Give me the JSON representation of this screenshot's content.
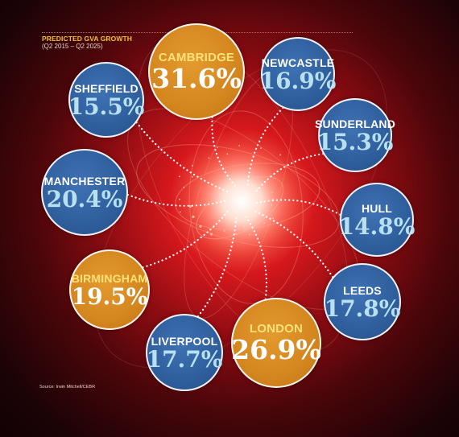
{
  "header": {
    "title": "PREDICTED GVA GROWTH",
    "subtitle": "(Q2 2015 – Q2 2025)"
  },
  "source": "Source: Irwin Mitchell/CEBR",
  "colors": {
    "blue_bubble": "#2f5e9c",
    "orange_bubble": "#d4861f",
    "title": "#f2c21d"
  },
  "chart_data": {
    "type": "bubble-infographic",
    "title": "PREDICTED GVA GROWTH",
    "subtitle": "(Q2 2015 – Q2 2025)",
    "unit": "%",
    "categories": [
      "Cambridge",
      "Newcastle",
      "Sunderland",
      "Hull",
      "Leeds",
      "London",
      "Liverpool",
      "Birmingham",
      "Manchester",
      "Sheffield"
    ],
    "values": [
      31.6,
      16.9,
      15.3,
      14.8,
      17.8,
      26.9,
      17.7,
      19.5,
      20.4,
      15.5
    ],
    "items": [
      {
        "name": "CAMBRIDGE",
        "label": "31.6%",
        "value": 31.6,
        "color": "orange"
      },
      {
        "name": "NEWCASTLE",
        "label": "16.9%",
        "value": 16.9,
        "color": "blue"
      },
      {
        "name": "SUNDERLAND",
        "label": "15.3%",
        "value": 15.3,
        "color": "blue"
      },
      {
        "name": "HULL",
        "label": "14.8%",
        "value": 14.8,
        "color": "blue"
      },
      {
        "name": "LEEDS",
        "label": "17.8%",
        "value": 17.8,
        "color": "blue"
      },
      {
        "name": "LONDON",
        "label": "26.9%",
        "value": 26.9,
        "color": "orange"
      },
      {
        "name": "LIVERPOOL",
        "label": "17.7%",
        "value": 17.7,
        "color": "blue"
      },
      {
        "name": "BIRMINGHAM",
        "label": "19.5%",
        "value": 19.5,
        "color": "orange"
      },
      {
        "name": "MANCHESTER",
        "label": "20.4%",
        "value": 20.4,
        "color": "blue"
      },
      {
        "name": "SHEFFIELD",
        "label": "15.5%",
        "value": 15.5,
        "color": "blue"
      }
    ]
  }
}
